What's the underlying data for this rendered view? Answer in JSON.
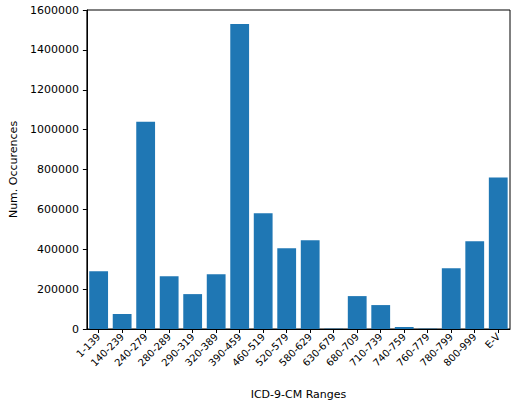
{
  "chart_data": {
    "type": "bar",
    "x_label": "ICD-9-CM Ranges",
    "y_label": "Num. Occurences",
    "categories": [
      "1-139",
      "140-239",
      "240-279",
      "280-289",
      "290-319",
      "320-389",
      "390-459",
      "460-519",
      "520-579",
      "580-629",
      "630-679",
      "680-709",
      "710-739",
      "740-759",
      "760-779",
      "780-799",
      "800-999",
      "E-V"
    ],
    "values": [
      290000,
      75000,
      1040000,
      265000,
      175000,
      275000,
      1530000,
      580000,
      405000,
      445000,
      2000,
      165000,
      120000,
      10000,
      2000,
      305000,
      440000,
      760000
    ],
    "color": "#1f77b4",
    "ylim": [
      0,
      1600000
    ],
    "yticks": [
      0,
      200000,
      400000,
      600000,
      800000,
      1000000,
      1200000,
      1400000,
      1600000
    ],
    "grid": false
  }
}
